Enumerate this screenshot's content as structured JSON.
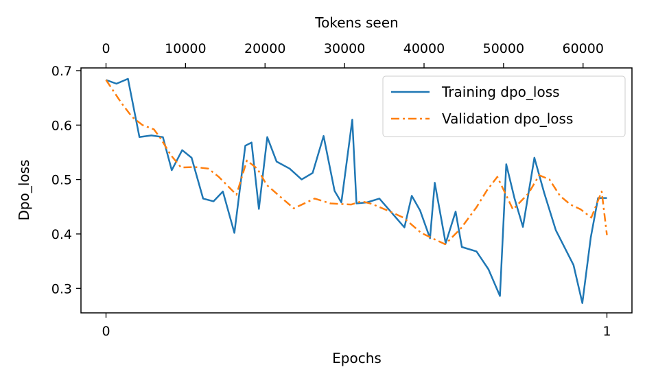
{
  "chart_data": {
    "type": "line",
    "xlabel": "Epochs",
    "ylabel": "Dpo_loss",
    "top_xlabel": "Tokens seen",
    "xlim": [
      -0.05,
      1.05
    ],
    "ylim": [
      0.255,
      0.705
    ],
    "top_xlim": [
      -3150,
      66150
    ],
    "x_ticks": [
      0,
      1
    ],
    "y_ticks": [
      0.3,
      0.4,
      0.5,
      0.6,
      0.7
    ],
    "top_x_ticks": [
      0,
      10000,
      20000,
      30000,
      40000,
      50000,
      60000
    ],
    "legend_position": "top-right",
    "series": [
      {
        "name": "Training dpo_loss",
        "color": "#1f77b4",
        "linestyle": "solid",
        "x": [
          0.0,
          0.0208,
          0.0438,
          0.0667,
          0.0906,
          0.1135,
          0.1313,
          0.1521,
          0.1708,
          0.1938,
          0.2146,
          0.2333,
          0.2563,
          0.2781,
          0.2906,
          0.3052,
          0.3219,
          0.3406,
          0.3667,
          0.3906,
          0.4125,
          0.4344,
          0.4563,
          0.4698,
          0.4917,
          0.5,
          0.5208,
          0.5458,
          0.5958,
          0.6104,
          0.6271,
          0.6469,
          0.6563,
          0.6781,
          0.6979,
          0.7104,
          0.7396,
          0.7635,
          0.7865,
          0.799,
          0.8156,
          0.8323,
          0.8552,
          0.875,
          0.8979,
          0.9333,
          0.951,
          0.9677,
          0.9823,
          1.0
        ],
        "y": [
          0.683,
          0.676,
          0.685,
          0.578,
          0.581,
          0.578,
          0.517,
          0.554,
          0.54,
          0.465,
          0.46,
          0.478,
          0.402,
          0.562,
          0.568,
          0.446,
          0.578,
          0.533,
          0.52,
          0.5,
          0.512,
          0.58,
          0.479,
          0.458,
          0.61,
          0.456,
          0.458,
          0.465,
          0.412,
          0.47,
          0.443,
          0.392,
          0.494,
          0.383,
          0.441,
          0.376,
          0.368,
          0.335,
          0.286,
          0.528,
          0.465,
          0.413,
          0.54,
          0.475,
          0.407,
          0.343,
          0.273,
          0.393,
          0.466,
          0.466
        ]
      },
      {
        "name": "Validation dpo_loss",
        "color": "#ff7f0e",
        "linestyle": "dashdot",
        "x": [
          0.0,
          0.0313,
          0.0521,
          0.0729,
          0.0958,
          0.1094,
          0.1292,
          0.15,
          0.1771,
          0.2042,
          0.225,
          0.2604,
          0.2813,
          0.3021,
          0.3208,
          0.3458,
          0.375,
          0.4167,
          0.4479,
          0.4896,
          0.5104,
          0.5313,
          0.5625,
          0.5938,
          0.6292,
          0.6563,
          0.6771,
          0.7083,
          0.7396,
          0.7604,
          0.7813,
          0.8125,
          0.8438,
          0.8646,
          0.8854,
          0.9063,
          0.9271,
          0.9479,
          0.9688,
          0.9896,
          1.0
        ],
        "y": [
          0.683,
          0.64,
          0.615,
          0.6,
          0.592,
          0.575,
          0.545,
          0.522,
          0.523,
          0.52,
          0.505,
          0.472,
          0.535,
          0.52,
          0.49,
          0.47,
          0.447,
          0.465,
          0.456,
          0.454,
          0.46,
          0.455,
          0.443,
          0.43,
          0.402,
          0.39,
          0.381,
          0.41,
          0.449,
          0.48,
          0.505,
          0.445,
          0.475,
          0.508,
          0.5,
          0.47,
          0.454,
          0.445,
          0.43,
          0.478,
          0.398
        ]
      }
    ]
  }
}
